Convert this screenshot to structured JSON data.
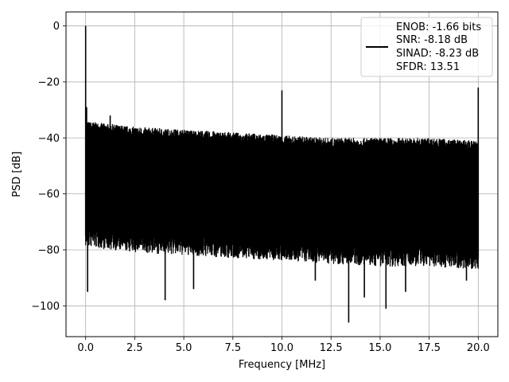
{
  "chart_data": {
    "type": "line",
    "title": "",
    "xlabel": "Frequency [MHz]",
    "ylabel": "PSD [dB]",
    "xlim": [
      -1.0,
      21.0
    ],
    "ylim": [
      -111,
      5
    ],
    "xticks": [
      0.0,
      2.5,
      5.0,
      7.5,
      10.0,
      12.5,
      15.0,
      17.5,
      20.0
    ],
    "xtick_labels": [
      "0.0",
      "2.5",
      "5.0",
      "7.5",
      "10.0",
      "12.5",
      "15.0",
      "17.5",
      "20.0"
    ],
    "yticks": [
      0,
      -20,
      -40,
      -60,
      -80,
      -100
    ],
    "ytick_labels": [
      "0",
      "−20",
      "−40",
      "−60",
      "−80",
      "−100"
    ],
    "grid": true,
    "legend_position": "top-right",
    "series": [
      {
        "legend_lines": [
          "ENOB: -1.66 bits",
          "SNR: -8.18 dB",
          "SINAD: -8.23 dB",
          "SFDR: 13.51"
        ],
        "color": "#000000",
        "noise_floor_upper": [
          {
            "x": 0.0,
            "y": -36
          },
          {
            "x": 2.5,
            "y": -38
          },
          {
            "x": 5.0,
            "y": -39
          },
          {
            "x": 7.5,
            "y": -40
          },
          {
            "x": 10.0,
            "y": -41
          },
          {
            "x": 12.5,
            "y": -42
          },
          {
            "x": 15.0,
            "y": -42
          },
          {
            "x": 17.5,
            "y": -42
          },
          {
            "x": 20.0,
            "y": -43
          }
        ],
        "noise_floor_lower": [
          {
            "x": 0.0,
            "y": -75
          },
          {
            "x": 2.5,
            "y": -77
          },
          {
            "x": 5.0,
            "y": -78
          },
          {
            "x": 7.5,
            "y": -79
          },
          {
            "x": 10.0,
            "y": -80
          },
          {
            "x": 12.5,
            "y": -81
          },
          {
            "x": 15.0,
            "y": -82
          },
          {
            "x": 17.5,
            "y": -82
          },
          {
            "x": 20.0,
            "y": -83
          }
        ],
        "spikes": [
          {
            "x": 0.0,
            "y": 0
          },
          {
            "x": 0.05,
            "y": -29
          },
          {
            "x": 1.25,
            "y": -32
          },
          {
            "x": 10.0,
            "y": -23
          },
          {
            "x": 20.0,
            "y": -22
          }
        ],
        "dips": [
          {
            "x": 0.1,
            "y": -95
          },
          {
            "x": 4.05,
            "y": -98
          },
          {
            "x": 5.5,
            "y": -94
          },
          {
            "x": 11.7,
            "y": -91
          },
          {
            "x": 13.4,
            "y": -106
          },
          {
            "x": 14.2,
            "y": -97
          },
          {
            "x": 15.3,
            "y": -101
          },
          {
            "x": 16.3,
            "y": -95
          },
          {
            "x": 19.4,
            "y": -91
          }
        ]
      }
    ]
  }
}
